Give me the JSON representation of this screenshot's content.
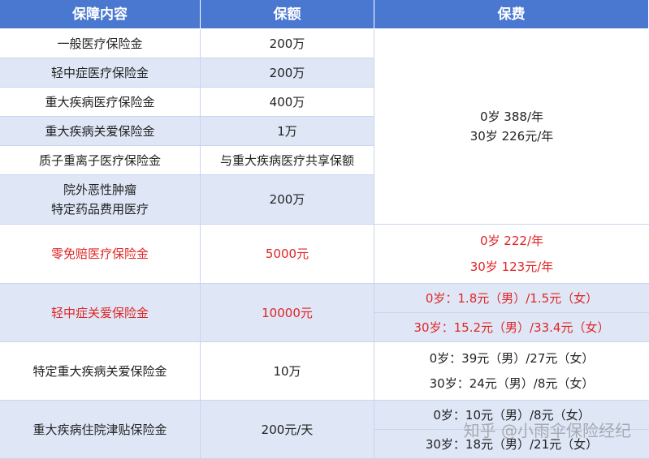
{
  "table": {
    "header": [
      "保障内容",
      "保额",
      "保费"
    ],
    "rows": [
      {
        "item": [
          "一般医疗保险金"
        ],
        "amount": "200万",
        "highlight": false
      },
      {
        "item": [
          "轻中症医疗保险金"
        ],
        "amount": "200万",
        "highlight": false
      },
      {
        "item": [
          "重大疾病医疗保险金"
        ],
        "amount": "400万",
        "highlight": false
      },
      {
        "item": [
          "重大疾病关爱保险金"
        ],
        "amount": "1万",
        "highlight": false
      },
      {
        "item": [
          "质子重离子医疗保险金"
        ],
        "amount": "与重大疾病医疗共享保额",
        "highlight": false
      },
      {
        "item": [
          "院外恶性肿瘤",
          "特定药品费用医疗"
        ],
        "amount": "200万",
        "highlight": false
      },
      {
        "item": [
          "零免赔医疗保险金"
        ],
        "amount": "5000元",
        "highlight": true
      },
      {
        "item": [
          "轻中症关爱保险金"
        ],
        "amount": "10000元",
        "highlight": true
      },
      {
        "item": [
          "特定重大疾病关爱保险金"
        ],
        "amount": "10万",
        "highlight": false
      },
      {
        "item": [
          "重大疾病住院津贴保险金"
        ],
        "amount": "200元/天",
        "highlight": false
      }
    ],
    "premiums": [
      {
        "lines": [
          "0岁 388/年",
          "30岁 226元/年"
        ],
        "split": false,
        "highlight": false
      },
      {
        "lines": [
          "0岁 222/年",
          "30岁 123元/年"
        ],
        "split": false,
        "highlight": true
      },
      {
        "lines": [
          "0岁：1.8元（男）/1.5元（女）",
          "30岁：15.2元（男）/33.4元（女）"
        ],
        "split": true,
        "highlight": true
      },
      {
        "lines": [
          "0岁：39元（男）/27元（女）",
          "30岁：24元（男）/8元（女）"
        ],
        "split": false,
        "highlight": false
      },
      {
        "lines": [
          "0岁：10元（男）/8元（女）",
          "30岁：18元（男）/21元（女）"
        ],
        "split": true,
        "highlight": false
      }
    ]
  },
  "watermark": "知乎 @小雨伞保险经纪"
}
